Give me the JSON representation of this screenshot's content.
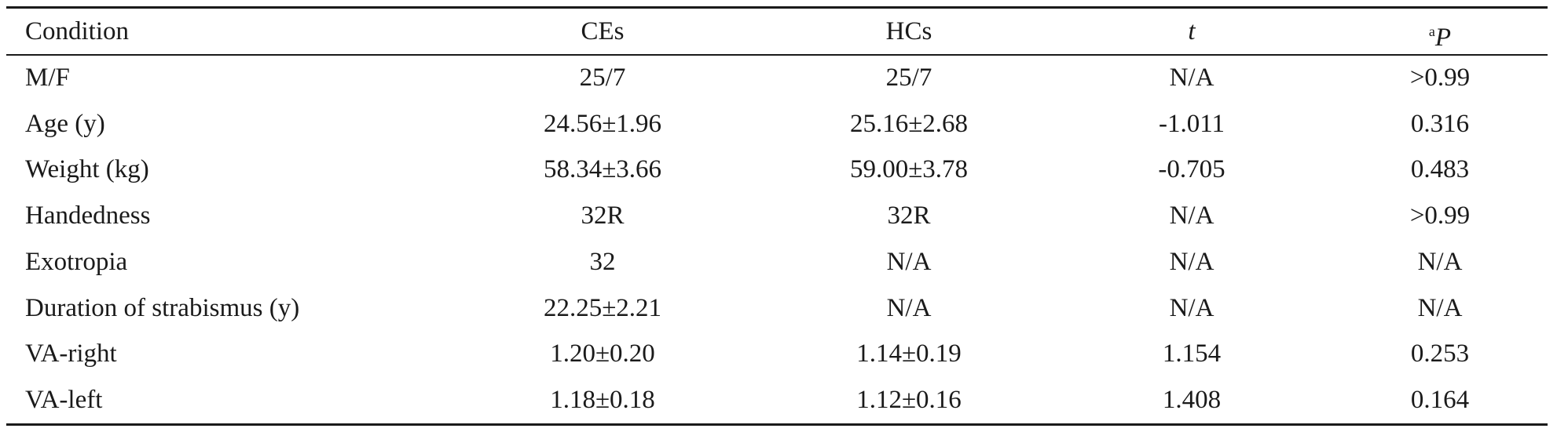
{
  "table": {
    "header": [
      "Condition",
      "CEs",
      "HCs",
      "t",
      "P"
    ],
    "header_note_mark": "a",
    "rows": [
      [
        "M/F",
        "25/7",
        "25/7",
        "N/A",
        ">0.99"
      ],
      [
        "Age (y)",
        "24.56±1.96",
        "25.16±2.68",
        "-1.011",
        "0.316"
      ],
      [
        "Weight (kg)",
        "58.34±3.66",
        "59.00±3.78",
        "-0.705",
        "0.483"
      ],
      [
        "Handedness",
        "32R",
        "32R",
        "N/A",
        ">0.99"
      ],
      [
        "Exotropia",
        "32",
        "N/A",
        "N/A",
        "N/A"
      ],
      [
        "Duration of strabismus (y)",
        "22.25±2.21",
        "N/A",
        "N/A",
        "N/A"
      ],
      [
        "VA-right",
        "1.20±0.20",
        "1.14±0.19",
        "1.154",
        "0.253"
      ],
      [
        "VA-left",
        "1.18±0.18",
        "1.12±0.16",
        "1.408",
        "0.164"
      ]
    ]
  }
}
